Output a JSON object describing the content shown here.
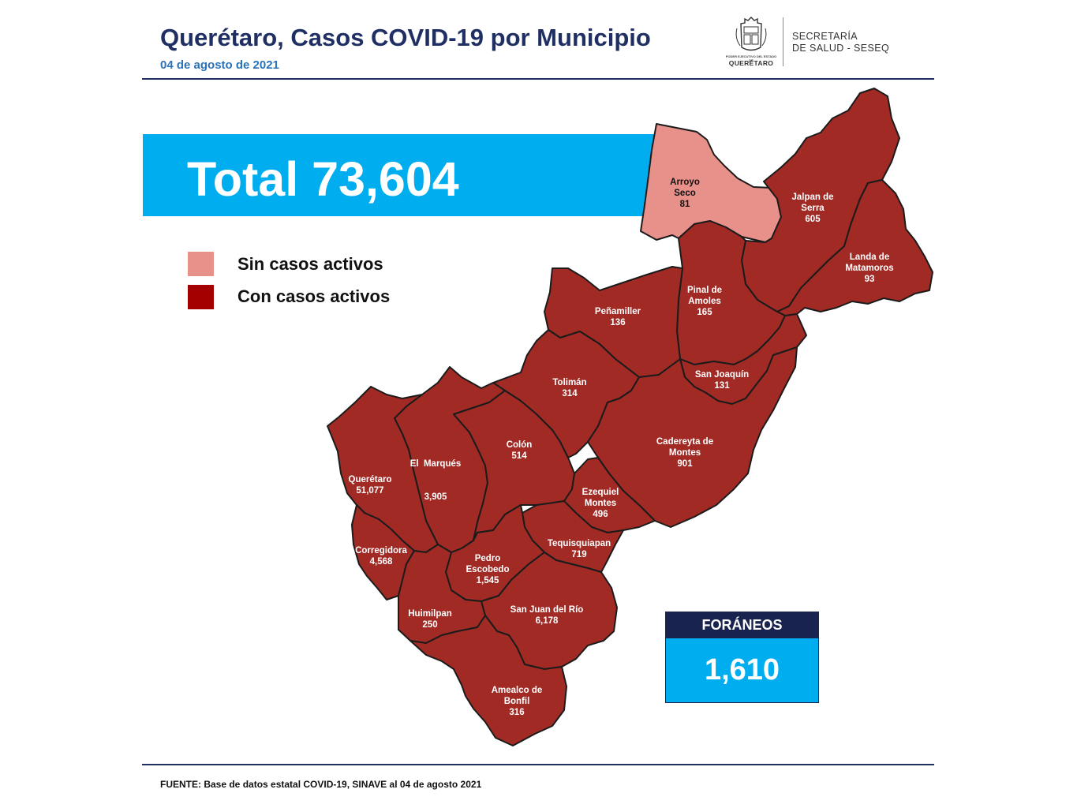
{
  "header": {
    "title": "Querétaro, Casos COVID-19 por Municipio",
    "date": "04 de agosto de 2021"
  },
  "logo": {
    "icon": "state-coat-of-arms-icon",
    "tiny_text": "PODER EJECUTIVO DEL ESTADO DE",
    "name": "QUERÉTARO"
  },
  "agency": {
    "line1": "SECRETARÍA",
    "line2": "DE SALUD - SESEQ"
  },
  "total_label": "Total 73,604",
  "legend": [
    {
      "label": "Sin casos activos",
      "color": "#e8908a"
    },
    {
      "label": "Con casos activos",
      "color": "#a50000"
    }
  ],
  "colors": {
    "no_active": "#e8908a",
    "active": "#a12a25",
    "border": "#1b1b1b",
    "band": "#00adef",
    "navy": "#1f2f63"
  },
  "municipalities": [
    {
      "id": "arroyo-seco",
      "name_lines": [
        "Arroyo",
        "Seco"
      ],
      "cases": "81",
      "status": "no_active"
    },
    {
      "id": "jalpan",
      "name_lines": [
        "Jalpan de",
        "Serra"
      ],
      "cases": "605",
      "status": "active"
    },
    {
      "id": "landa",
      "name_lines": [
        "Landa de",
        "Matamoros"
      ],
      "cases": "93",
      "status": "active"
    },
    {
      "id": "pinal",
      "name_lines": [
        "Pinal de",
        "Amoles"
      ],
      "cases": "165",
      "status": "active"
    },
    {
      "id": "penamiller",
      "name_lines": [
        "Peñamiller"
      ],
      "cases": "136",
      "status": "active"
    },
    {
      "id": "san-joaquin",
      "name_lines": [
        "San Joaquín"
      ],
      "cases": "131",
      "status": "active"
    },
    {
      "id": "toliman",
      "name_lines": [
        "Tolimán"
      ],
      "cases": "314",
      "status": "active"
    },
    {
      "id": "cadereyta",
      "name_lines": [
        "Cadereyta de",
        "Montes"
      ],
      "cases": "901",
      "status": "active"
    },
    {
      "id": "el-marques",
      "name_lines": [
        "El  Marqués"
      ],
      "cases": "3,905",
      "status": "active"
    },
    {
      "id": "colon",
      "name_lines": [
        "Colón"
      ],
      "cases": "514",
      "status": "active"
    },
    {
      "id": "queretaro",
      "name_lines": [
        "Querétaro"
      ],
      "cases": "51,077",
      "status": "active"
    },
    {
      "id": "ezequiel",
      "name_lines": [
        "Ezequiel",
        "Montes"
      ],
      "cases": "496",
      "status": "active"
    },
    {
      "id": "tequisquiapan",
      "name_lines": [
        "Tequisquiapan"
      ],
      "cases": "719",
      "status": "active"
    },
    {
      "id": "corregidora",
      "name_lines": [
        "Corregidora"
      ],
      "cases": "4,568",
      "status": "active"
    },
    {
      "id": "pedro-escobedo",
      "name_lines": [
        "Pedro",
        "Escobedo"
      ],
      "cases": "1,545",
      "status": "active"
    },
    {
      "id": "huimilpan",
      "name_lines": [
        "Huimilpan"
      ],
      "cases": "250",
      "status": "active"
    },
    {
      "id": "san-juan",
      "name_lines": [
        "San Juan del Río"
      ],
      "cases": "6,178",
      "status": "active"
    },
    {
      "id": "amealco",
      "name_lines": [
        "Amealco de",
        "Bonfil"
      ],
      "cases": "316",
      "status": "active"
    }
  ],
  "foraneos": {
    "label": "FORÁNEOS",
    "value": "1,610"
  },
  "source": "FUENTE:  Base de datos estatal COVID-19,  SINAVE  al 04 de agosto 2021"
}
